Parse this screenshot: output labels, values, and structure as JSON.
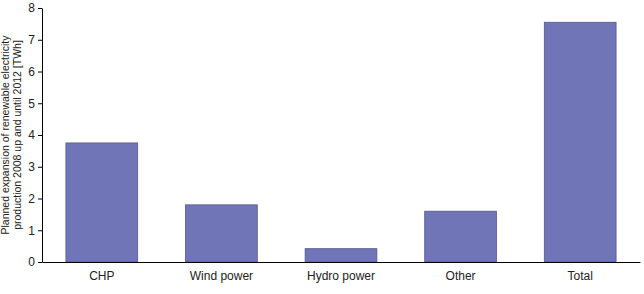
{
  "chart_data": {
    "type": "bar",
    "y_label": [
      "Planned expansion of renewable electricity",
      "production 2008 up and until 2012 [TWh]"
    ],
    "categories": [
      "CHP",
      "Wind power",
      "Hydro power",
      "Other",
      "Total"
    ],
    "values": [
      3.75,
      1.8,
      0.42,
      1.6,
      7.55
    ],
    "color": "#7075b8",
    "ylim": [
      0,
      8
    ],
    "yticks": [
      0,
      1,
      2,
      3,
      4,
      5,
      6,
      7,
      8
    ],
    "grid": false
  }
}
